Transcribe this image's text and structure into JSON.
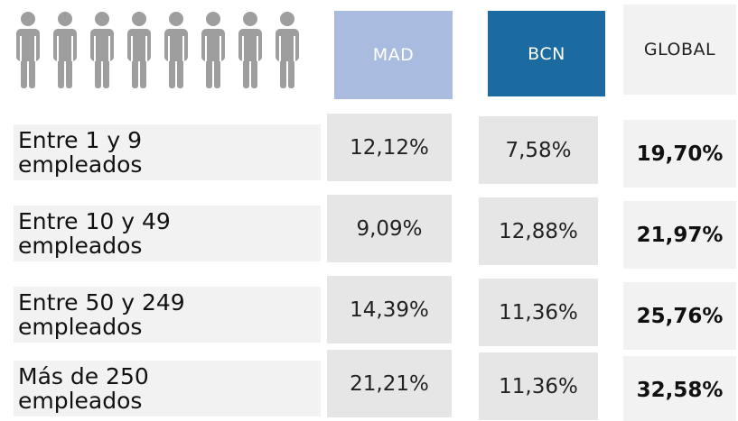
{
  "table": {
    "columns": [
      "MAD",
      "BCN",
      "GLOBAL"
    ],
    "rows": [
      {
        "label": "Entre 1 y 9 empleados",
        "values": [
          "12,12%",
          "7,58%",
          "19,70%"
        ]
      },
      {
        "label": "Entre 10 y 49 empleados",
        "values": [
          "9,09%",
          "12,88%",
          "21,97%"
        ]
      },
      {
        "label": "Entre 50 y 249 empleados",
        "values": [
          "14,39%",
          "11,36%",
          "25,76%"
        ]
      },
      {
        "label": "Más de 250 empleados",
        "values": [
          "21,21%",
          "11,36%",
          "32,58%"
        ]
      }
    ]
  }
}
